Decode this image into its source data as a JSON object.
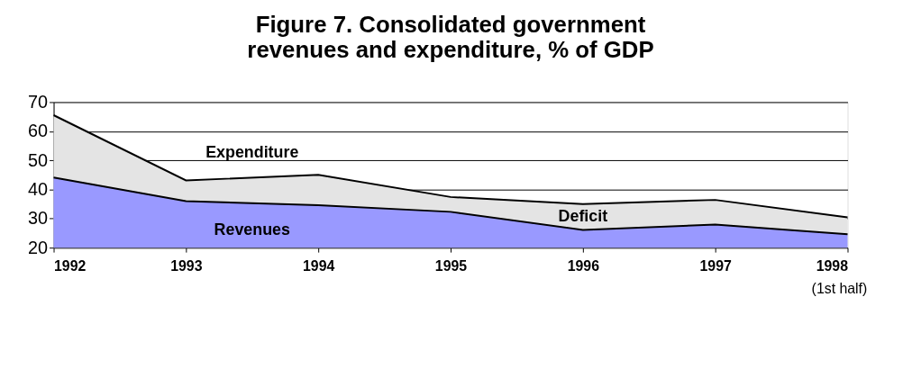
{
  "chart_data": {
    "type": "area",
    "title": "Figure 7. Consolidated government revenues and expenditure, % of GDP",
    "x": [
      1992,
      1993,
      1994,
      1995,
      1996,
      1997,
      1998
    ],
    "series": [
      {
        "name": "Expenditure",
        "color": "#e4e4e4",
        "values": [
          65.5,
          43.1,
          45,
          37.4,
          35,
          36.4,
          30.4
        ]
      },
      {
        "name": "Revenues",
        "color": "#9999ff",
        "values": [
          44.1,
          36,
          34.6,
          32.3,
          26.1,
          27.9,
          24.6
        ]
      }
    ],
    "xlim": [
      1992,
      1998
    ],
    "xticks": [
      1992,
      1993,
      1994,
      1995,
      1996,
      1997,
      1998
    ],
    "ylim": [
      20,
      70
    ],
    "yticks": [
      20,
      30,
      40,
      50,
      60,
      70
    ],
    "grid": "y",
    "annotations": [
      "Deficit",
      "(1st half)"
    ]
  }
}
